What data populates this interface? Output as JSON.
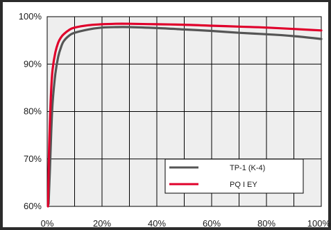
{
  "chart_data": {
    "type": "line",
    "title": "",
    "xlabel": "",
    "ylabel": "",
    "xlim": [
      0,
      100
    ],
    "ylim": [
      60,
      100
    ],
    "x_ticks": [
      0,
      10,
      20,
      30,
      40,
      50,
      60,
      70,
      80,
      90,
      100
    ],
    "x_tick_labels": [
      "0%",
      "",
      "20%",
      "",
      "40%",
      "",
      "60%",
      "",
      "80%",
      "",
      "100%"
    ],
    "y_ticks": [
      60,
      70,
      80,
      90,
      100
    ],
    "y_tick_labels": [
      "60%",
      "70%",
      "80%",
      "90%",
      "100%"
    ],
    "grid": true,
    "legend_position": "bottom-right",
    "series": [
      {
        "name": "TP-1 (K-4)",
        "color": "#555555",
        "x": [
          0.5,
          1,
          1.5,
          2,
          3,
          4,
          5,
          6,
          8,
          10,
          15,
          20,
          25,
          30,
          40,
          50,
          60,
          70,
          80,
          90,
          100
        ],
        "y": [
          60.5,
          68,
          76,
          82,
          88,
          91.5,
          93.5,
          94.8,
          96.0,
          96.6,
          97.3,
          97.7,
          97.8,
          97.8,
          97.6,
          97.3,
          97.0,
          96.6,
          96.3,
          95.9,
          95.3
        ]
      },
      {
        "name": "PQ I EY",
        "color": "#e0002b",
        "x": [
          0.3,
          0.6,
          1,
          1.5,
          2,
          3,
          4,
          5,
          6,
          8,
          10,
          15,
          20,
          25,
          30,
          40,
          50,
          60,
          70,
          80,
          90,
          100
        ],
        "y": [
          60,
          70,
          78,
          85,
          89,
          92.5,
          94.5,
          95.6,
          96.3,
          97.2,
          97.7,
          98.2,
          98.4,
          98.5,
          98.5,
          98.4,
          98.3,
          98.1,
          97.9,
          97.7,
          97.4,
          97.1
        ]
      }
    ]
  }
}
